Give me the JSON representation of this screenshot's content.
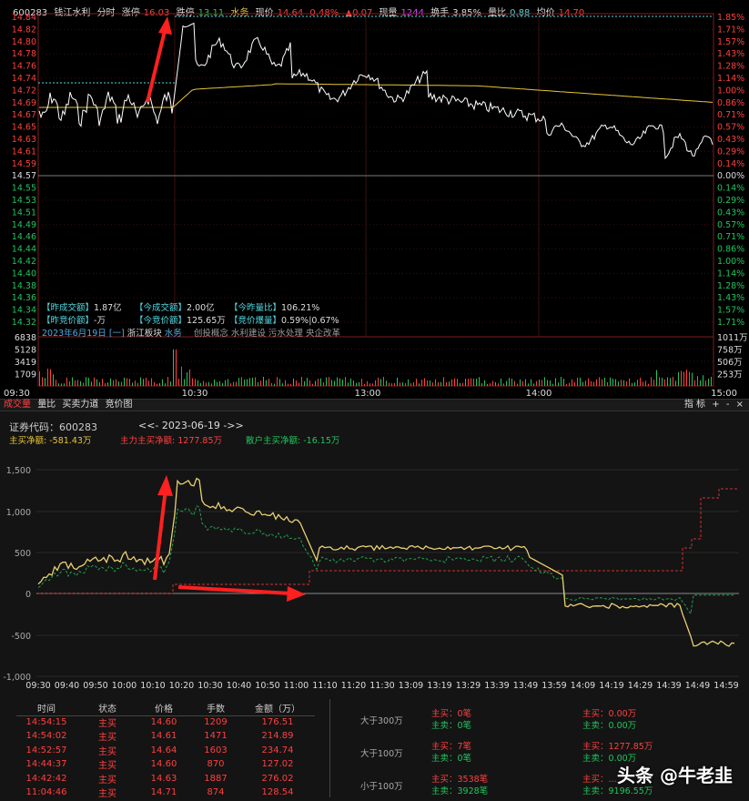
{
  "infobar": {
    "code": "600283",
    "name": "钱江水利",
    "mode": "分时",
    "limit_up_label": "涨停",
    "limit_up_value": "16.03",
    "limit_down_label": "跌停",
    "limit_down_value": "13.11",
    "flag": "水务",
    "price_label": "现价",
    "price_value": "14.64",
    "pct": "0.48%",
    "change": "▲0.07",
    "volume_label": "现量",
    "volume_value": "1244",
    "turnover_label": "换手",
    "turnover_value": "3.85%",
    "ratio_label": "量比",
    "ratio_value": "0.88",
    "avg_label": "均价",
    "avg_value": "14.70"
  },
  "price_axis_left": [
    "14.84",
    "14.82",
    "14.80",
    "14.78",
    "14.76",
    "14.74",
    "14.72",
    "14.69",
    "14.67",
    "14.65",
    "14.63",
    "14.61",
    "14.59",
    "14.57",
    "14.55",
    "14.53",
    "14.51",
    "14.49",
    "14.46",
    "14.44",
    "14.42",
    "14.40",
    "14.38",
    "14.36",
    "14.34",
    "14.32"
  ],
  "pct_axis_right": [
    "1.85%",
    "1.71%",
    "1.57%",
    "1.43%",
    "1.28%",
    "1.14%",
    "1.00%",
    "0.86%",
    "0.71%",
    "0.57%",
    "0.43%",
    "0.29%",
    "0.14%",
    "0.00%",
    "0.14%",
    "0.29%",
    "0.43%",
    "0.57%",
    "0.71%",
    "0.86%",
    "1.00%",
    "1.14%",
    "1.28%",
    "1.43%",
    "1.57%",
    "1.71%"
  ],
  "stats": {
    "r1c1_label": "【昨成交额】",
    "r1c1_value": "1.87亿",
    "r1c2_label": "【今成交额】",
    "r1c2_value": "2.00亿",
    "r1c3_label": "【今昨量比】",
    "r1c3_value": "106.21%",
    "r2c1_label": "【昨竞价额】",
    "r2c1_value": "-万",
    "r2c2_label": "【今竞价额】",
    "r2c2_value": "125.65万",
    "r2c3_label": "【竞价爆量】",
    "r2c3_value": "0.59%|0.67%"
  },
  "concept_line": {
    "date": "2023年6月19日",
    "tag": "[一]",
    "board": "浙江板块",
    "flag": "水务",
    "concepts": "创投概念  水利建设  污水处理  央企改革"
  },
  "volume_axis_left": [
    "6838",
    "5128",
    "3419",
    "1709"
  ],
  "volume_axis_right": [
    "1011万",
    "758万",
    "506万",
    "253万"
  ],
  "time_axis_top": [
    "09:30",
    "10:30",
    "13:00",
    "14:00",
    "15:00"
  ],
  "tabs": [
    "成交量",
    "量比",
    "买卖力道",
    "竞价图"
  ],
  "tab_right": {
    "label": "指 标",
    "plus": "+",
    "minus": "-",
    "close": "×"
  },
  "flow": {
    "code_label": "证券代码：600283",
    "date_nav": "<<- 2023-06-19 ->>",
    "main_net_label": "主买净额:",
    "main_net_value": "-581.43万",
    "force_net_label": "主力主买净额:",
    "force_net_value": "1277.85万",
    "retail_net_label": "散户主买净额:",
    "retail_net_value": "-16.15万",
    "y_ticks": [
      "1,500",
      "1,000",
      "500",
      "0",
      "-500",
      "-1,000"
    ],
    "x_ticks": [
      "09:30",
      "09:40",
      "09:50",
      "10:00",
      "10:10",
      "10:20",
      "10:30",
      "10:40",
      "10:50",
      "11:00",
      "11:10",
      "11:20",
      "11:30",
      "13:09",
      "13:19",
      "13:29",
      "13:39",
      "13:49",
      "13:59",
      "14:09",
      "14:19",
      "14:29",
      "14:39",
      "14:49",
      "14:59"
    ]
  },
  "deals": {
    "headers": [
      "时间",
      "状态",
      "价格",
      "手数",
      "金额（万）"
    ],
    "rows": [
      [
        "14:54:15",
        "主买",
        "14.60",
        "1209",
        "176.51"
      ],
      [
        "14:54:02",
        "主买",
        "14.61",
        "1471",
        "214.89"
      ],
      [
        "14:52:57",
        "主买",
        "14.64",
        "1603",
        "234.74"
      ],
      [
        "14:44:37",
        "主买",
        "14.60",
        "870",
        "127.02"
      ],
      [
        "14:42:42",
        "主买",
        "14.63",
        "1887",
        "276.02"
      ],
      [
        "11:04:46",
        "主买",
        "14.71",
        "874",
        "128.54"
      ]
    ]
  },
  "size_stats": [
    {
      "label": "大于300万",
      "buy_count": "主买：0笔",
      "sell_count": "主卖：0笔",
      "buy_amt": "主买：0.00万",
      "sell_amt": "主卖：0.00万"
    },
    {
      "label": "大于100万",
      "buy_count": "主买：7笔",
      "sell_count": "主卖：0笔",
      "buy_amt": "主买：1277.85万",
      "sell_amt": "主卖：0.00万"
    },
    {
      "label": "小于100万",
      "buy_count": "主买：3538笔",
      "sell_count": "主卖：3928笔",
      "buy_amt": "主买：...",
      "sell_amt": "主卖：9196.55万"
    }
  ],
  "watermark": "头条 @牛老韭",
  "colors": {
    "red": "#ff4040",
    "green": "#22c55e",
    "yellow": "#e8c53a",
    "cyan": "#4fd8e0",
    "white": "#ffffff",
    "purple": "#e040ff"
  }
}
